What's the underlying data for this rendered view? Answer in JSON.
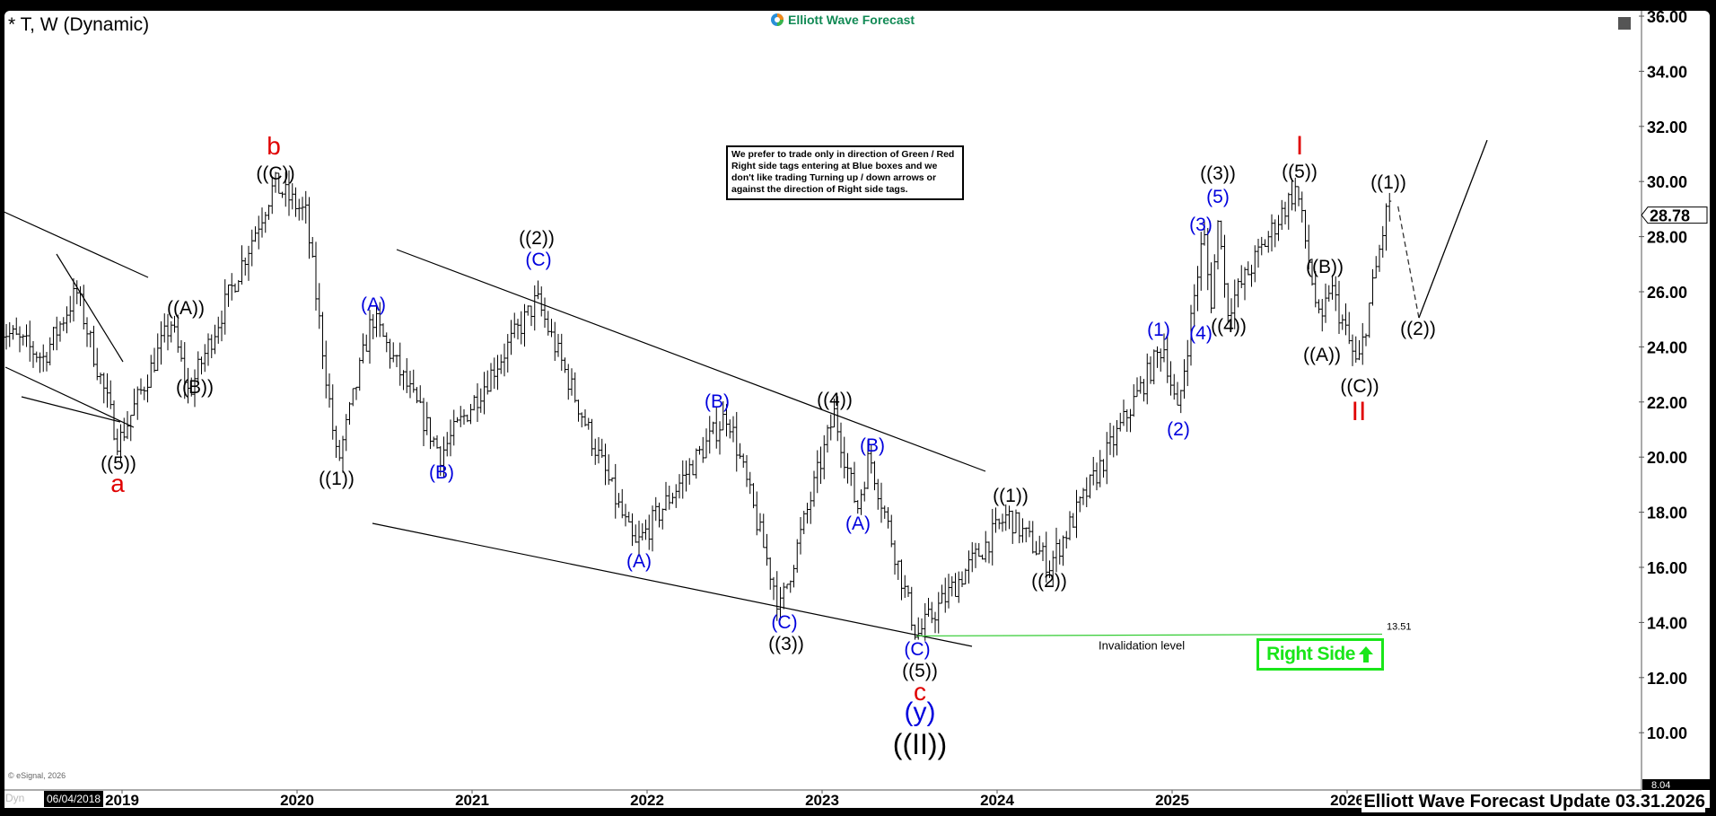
{
  "header": {
    "title": "* T, W (Dynamic)",
    "logo_text": "Elliott Wave Forecast"
  },
  "note": "We prefer to trade only in direction of Green / Red Right side tags entering at Blue boxes and we don't like trading Turning up / down arrows or against the direction of Right side tags.",
  "right_side_tag": {
    "label": "Right Side",
    "direction": "up",
    "color": "#19e619"
  },
  "footer": {
    "text": "Elliott Wave Forecast Update 03.31.2026",
    "copyright": "© eSignal, 2026",
    "dyn": "Dyn",
    "cursor_date": "06/04/2018"
  },
  "colors": {
    "wave_black": "#000000",
    "wave_blue": "#0000dd",
    "wave_red": "#e00000",
    "invalidation": "#33cc33"
  },
  "chart_data": {
    "type": "ohlc",
    "symbol": "T",
    "interval": "W",
    "ylim": [
      8.04,
      36
    ],
    "y_ticks": [
      "10.00",
      "12.00",
      "14.00",
      "16.00",
      "18.00",
      "20.00",
      "22.00",
      "24.00",
      "26.00",
      "28.00",
      "30.00",
      "32.00",
      "34.00",
      "36.00"
    ],
    "x_ticks": [
      "2019",
      "2020",
      "2021",
      "2022",
      "2023",
      "2024",
      "2025",
      "2026"
    ],
    "last_price": "28.78",
    "axis_min_label": "8.04",
    "invalidation": {
      "value": 13.51,
      "label": "13.51",
      "text": "Invalidation level"
    },
    "pivots": [
      {
        "t": 2018.3,
        "p": 24.7
      },
      {
        "t": 2018.55,
        "p": 23.6
      },
      {
        "t": 2018.74,
        "p": 26.0
      },
      {
        "t": 2018.98,
        "p": 20.5
      },
      {
        "t": 2019.28,
        "p": 24.9
      },
      {
        "t": 2019.38,
        "p": 22.3
      },
      {
        "t": 2019.87,
        "p": 29.9
      },
      {
        "t": 2020.05,
        "p": 28.8
      },
      {
        "t": 2020.23,
        "p": 19.7
      },
      {
        "t": 2020.43,
        "p": 25.1
      },
      {
        "t": 2020.82,
        "p": 20.1
      },
      {
        "t": 2021.37,
        "p": 25.7
      },
      {
        "t": 2021.93,
        "p": 16.7
      },
      {
        "t": 2022.46,
        "p": 21.6
      },
      {
        "t": 2022.76,
        "p": 14.5
      },
      {
        "t": 2023.07,
        "p": 21.6
      },
      {
        "t": 2023.2,
        "p": 18.1
      },
      {
        "t": 2023.27,
        "p": 20.1
      },
      {
        "t": 2023.54,
        "p": 13.51
      },
      {
        "t": 2024.06,
        "p": 17.9
      },
      {
        "t": 2024.3,
        "p": 16.1
      },
      {
        "t": 2024.95,
        "p": 24.1
      },
      {
        "t": 2025.03,
        "p": 21.5
      },
      {
        "t": 2025.18,
        "p": 28.2
      },
      {
        "t": 2025.22,
        "p": 25.5
      },
      {
        "t": 2025.27,
        "p": 29.0
      },
      {
        "t": 2025.31,
        "p": 25.3
      },
      {
        "t": 2025.71,
        "p": 29.8
      },
      {
        "t": 2025.85,
        "p": 24.5
      },
      {
        "t": 2025.9,
        "p": 26.3
      },
      {
        "t": 2026.06,
        "p": 23.2
      },
      {
        "t": 2026.24,
        "p": 29.4
      },
      {
        "t": 2026.26,
        "p": 28.78
      }
    ],
    "projection": [
      {
        "t": 2026.26,
        "p": 29.1
      },
      {
        "t": 2026.41,
        "p": 25.05
      },
      {
        "t": 2026.8,
        "p": 31.5
      }
    ],
    "wave_labels": [
      {
        "text": "((5))",
        "color": "black"
      },
      {
        "text": "a",
        "color": "red"
      },
      {
        "text": "((A))",
        "color": "black"
      },
      {
        "text": "((B))",
        "color": "black"
      },
      {
        "text": "b",
        "color": "red"
      },
      {
        "text": "((C))",
        "color": "black"
      },
      {
        "text": "((1))",
        "color": "black"
      },
      {
        "text": "(A)",
        "color": "blue"
      },
      {
        "text": "(B)",
        "color": "blue"
      },
      {
        "text": "((2))",
        "color": "black"
      },
      {
        "text": "(C)",
        "color": "blue"
      },
      {
        "text": "(A)",
        "color": "blue"
      },
      {
        "text": "(B)",
        "color": "blue"
      },
      {
        "text": "(C)",
        "color": "blue"
      },
      {
        "text": "((3))",
        "color": "black"
      },
      {
        "text": "((4))",
        "color": "black"
      },
      {
        "text": "(B)",
        "color": "blue"
      },
      {
        "text": "(A)",
        "color": "blue"
      },
      {
        "text": "(C)",
        "color": "blue"
      },
      {
        "text": "((5))",
        "color": "black"
      },
      {
        "text": "c",
        "color": "red"
      },
      {
        "text": "(y)",
        "color": "blue"
      },
      {
        "text": "((II))",
        "color": "black"
      },
      {
        "text": "((1))",
        "color": "black"
      },
      {
        "text": "((2))",
        "color": "black"
      },
      {
        "text": "(1)",
        "color": "blue"
      },
      {
        "text": "(2)",
        "color": "blue"
      },
      {
        "text": "(3)",
        "color": "blue"
      },
      {
        "text": "(4)",
        "color": "blue"
      },
      {
        "text": "((4))",
        "color": "black"
      },
      {
        "text": "(5)",
        "color": "blue"
      },
      {
        "text": "((3))",
        "color": "black"
      },
      {
        "text": "I",
        "color": "red"
      },
      {
        "text": "((5))",
        "color": "black"
      },
      {
        "text": "((B))",
        "color": "black"
      },
      {
        "text": "((A))",
        "color": "black"
      },
      {
        "text": "((C))",
        "color": "black"
      },
      {
        "text": "II",
        "color": "red"
      },
      {
        "text": "((1))",
        "color": "black"
      },
      {
        "text": "((2))",
        "color": "black"
      }
    ]
  }
}
